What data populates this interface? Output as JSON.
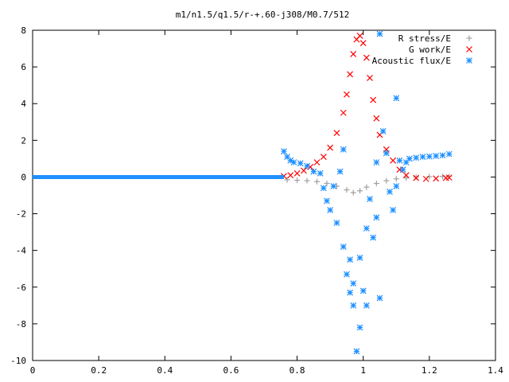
{
  "chart_data": {
    "type": "scatter",
    "title": "m1/n1.5/q1.5/r-+.60-j308/M0.7/512",
    "xlabel": "",
    "ylabel": "",
    "xlim": [
      0,
      1.4
    ],
    "ylim": [
      -10,
      8
    ],
    "x_ticks": [
      {
        "value": 0,
        "label": "0"
      },
      {
        "value": 0.2,
        "label": "0.2"
      },
      {
        "value": 0.4,
        "label": "0.4"
      },
      {
        "value": 0.6,
        "label": "0.6"
      },
      {
        "value": 0.8,
        "label": "0.8"
      },
      {
        "value": 1.0,
        "label": "1"
      },
      {
        "value": 1.2,
        "label": "1.2"
      },
      {
        "value": 1.4,
        "label": "1.4"
      }
    ],
    "y_ticks": [
      {
        "value": 8,
        "label": "8"
      },
      {
        "value": 6,
        "label": "6"
      },
      {
        "value": 4,
        "label": "4"
      },
      {
        "value": 2,
        "label": "2"
      },
      {
        "value": 0,
        "label": "0"
      },
      {
        "value": -2,
        "label": "-2"
      },
      {
        "value": -4,
        "label": "-4"
      },
      {
        "value": -6,
        "label": "-6"
      },
      {
        "value": -8,
        "label": "-8"
      },
      {
        "value": -10,
        "label": "-10"
      }
    ],
    "grid": false,
    "legend_position": "top-right",
    "series": [
      {
        "name": "R stress/E",
        "marker": "plus",
        "color": "#a0a0a0",
        "points": [
          [
            0.77,
            -0.15
          ],
          [
            0.8,
            -0.18
          ],
          [
            0.83,
            -0.2
          ],
          [
            0.86,
            -0.25
          ],
          [
            0.89,
            -0.35
          ],
          [
            0.92,
            -0.5
          ],
          [
            0.95,
            -0.7
          ],
          [
            0.97,
            -0.85
          ],
          [
            0.99,
            -0.75
          ],
          [
            1.01,
            -0.55
          ],
          [
            1.04,
            -0.35
          ],
          [
            1.07,
            -0.2
          ],
          [
            1.1,
            -0.1
          ],
          [
            1.13,
            -0.05
          ],
          [
            1.16,
            0.0
          ],
          [
            1.2,
            0.02
          ],
          [
            1.24,
            0.03
          ],
          [
            1.26,
            0.03
          ]
        ]
      },
      {
        "name": "G work/E",
        "marker": "cross",
        "color": "#ff0000",
        "points": [
          [
            0.76,
            0.05
          ],
          [
            0.78,
            0.1
          ],
          [
            0.8,
            0.2
          ],
          [
            0.82,
            0.35
          ],
          [
            0.84,
            0.55
          ],
          [
            0.86,
            0.8
          ],
          [
            0.88,
            1.1
          ],
          [
            0.9,
            1.6
          ],
          [
            0.92,
            2.4
          ],
          [
            0.94,
            3.5
          ],
          [
            0.95,
            4.5
          ],
          [
            0.96,
            5.6
          ],
          [
            0.97,
            6.7
          ],
          [
            0.98,
            7.5
          ],
          [
            0.99,
            7.7
          ],
          [
            1.0,
            7.3
          ],
          [
            1.01,
            6.5
          ],
          [
            1.02,
            5.4
          ],
          [
            1.03,
            4.2
          ],
          [
            1.04,
            3.2
          ],
          [
            1.05,
            2.3
          ],
          [
            1.07,
            1.5
          ],
          [
            1.09,
            0.9
          ],
          [
            1.11,
            0.4
          ],
          [
            1.13,
            0.1
          ],
          [
            1.16,
            -0.05
          ],
          [
            1.19,
            -0.1
          ],
          [
            1.22,
            -0.08
          ],
          [
            1.25,
            -0.05
          ],
          [
            1.26,
            -0.03
          ]
        ]
      },
      {
        "name": "Acoustic flux/E",
        "marker": "star",
        "color": "#1e90ff",
        "points": [
          [
            0.76,
            1.4
          ],
          [
            0.77,
            1.1
          ],
          [
            0.78,
            0.9
          ],
          [
            0.79,
            0.8
          ],
          [
            0.81,
            0.75
          ],
          [
            0.83,
            0.6
          ],
          [
            0.85,
            0.3
          ],
          [
            0.87,
            0.2
          ],
          [
            0.88,
            -0.6
          ],
          [
            0.89,
            -1.3
          ],
          [
            0.9,
            -1.8
          ],
          [
            0.91,
            -0.5
          ],
          [
            0.92,
            -2.5
          ],
          [
            0.93,
            0.3
          ],
          [
            0.94,
            1.5
          ],
          [
            0.94,
            -3.8
          ],
          [
            0.95,
            -5.3
          ],
          [
            0.96,
            -6.3
          ],
          [
            0.96,
            -4.5
          ],
          [
            0.97,
            -7.0
          ],
          [
            0.97,
            -5.8
          ],
          [
            0.98,
            -9.5
          ],
          [
            0.99,
            -8.2
          ],
          [
            0.99,
            -4.4
          ],
          [
            1.0,
            -6.2
          ],
          [
            1.01,
            -2.8
          ],
          [
            1.01,
            -7.0
          ],
          [
            1.02,
            -1.2
          ],
          [
            1.03,
            -3.3
          ],
          [
            1.04,
            0.8
          ],
          [
            1.04,
            -2.2
          ],
          [
            1.05,
            -6.6
          ],
          [
            1.05,
            7.8
          ],
          [
            1.06,
            2.5
          ],
          [
            1.07,
            1.3
          ],
          [
            1.08,
            -0.8
          ],
          [
            1.09,
            -1.8
          ],
          [
            1.1,
            4.3
          ],
          [
            1.1,
            -0.5
          ],
          [
            1.11,
            0.9
          ],
          [
            1.12,
            0.4
          ],
          [
            1.13,
            0.8
          ],
          [
            1.14,
            1.0
          ],
          [
            1.16,
            1.05
          ],
          [
            1.18,
            1.1
          ],
          [
            1.2,
            1.12
          ],
          [
            1.22,
            1.15
          ],
          [
            1.24,
            1.18
          ],
          [
            1.26,
            1.25
          ]
        ]
      },
      {
        "name": "",
        "marker": "star",
        "color": "#1e90ff",
        "line": true,
        "points": [
          [
            0,
            0
          ],
          [
            0.76,
            0
          ]
        ]
      }
    ]
  }
}
